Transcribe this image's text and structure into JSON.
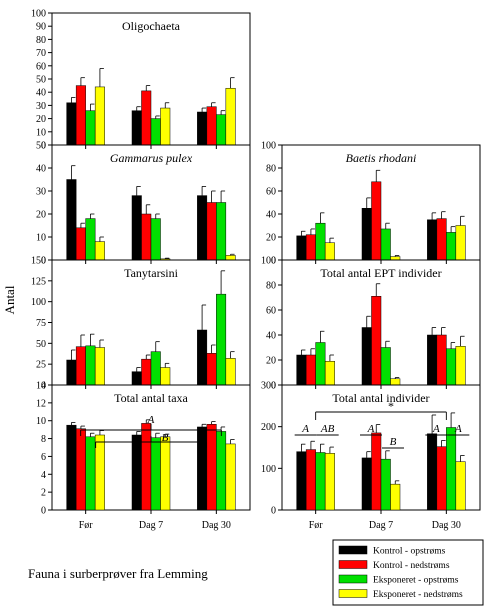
{
  "y_axis_label": "Antal",
  "caption": "Fauna i surberprøver fra Lemming",
  "groups": [
    "Før",
    "Dag 7",
    "Dag 30"
  ],
  "legend": [
    {
      "label": "Kontrol - opstrøms",
      "color": "#000000"
    },
    {
      "label": "Kontrol - nedstrøms",
      "color": "#ff0000"
    },
    {
      "label": "Eksponeret - opstrøms",
      "color": "#00e000"
    },
    {
      "label": "Eksponeret - nedstrøms",
      "color": "#ffff00"
    }
  ],
  "chart_data": [
    {
      "type": "bar",
      "title": "Oligochaeta",
      "title_italic": false,
      "ylim": [
        0,
        100
      ],
      "yticks": [
        0,
        10,
        20,
        30,
        40,
        50,
        60,
        70,
        80,
        90,
        100
      ],
      "categories": [
        "Før",
        "Dag 7",
        "Dag 30"
      ],
      "series": [
        {
          "name": "Kontrol - opstrøms",
          "values": [
            32,
            26,
            25
          ],
          "errors": [
            4,
            3,
            3
          ]
        },
        {
          "name": "Kontrol - nedstrøms",
          "values": [
            45,
            41,
            29
          ],
          "errors": [
            6,
            4,
            3
          ]
        },
        {
          "name": "Eksponeret - opstrøms",
          "values": [
            26,
            20,
            23
          ],
          "errors": [
            5,
            2,
            3
          ]
        },
        {
          "name": "Eksponeret - nedstrøms",
          "values": [
            44,
            28,
            43
          ],
          "errors": [
            14,
            4,
            8
          ]
        }
      ]
    },
    {
      "type": "bar",
      "title": "Gammarus pulex",
      "title_italic": true,
      "ylim": [
        0,
        50
      ],
      "yticks": [
        0,
        10,
        20,
        30,
        40,
        50
      ],
      "categories": [
        "Før",
        "Dag 7",
        "Dag 30"
      ],
      "series": [
        {
          "name": "Kontrol - opstrøms",
          "values": [
            35,
            28,
            28
          ],
          "errors": [
            6,
            4,
            4
          ]
        },
        {
          "name": "Kontrol - nedstrøms",
          "values": [
            14,
            20,
            25
          ],
          "errors": [
            2,
            4,
            5
          ]
        },
        {
          "name": "Eksponeret - opstrøms",
          "values": [
            18,
            18,
            25
          ],
          "errors": [
            2,
            2,
            5
          ]
        },
        {
          "name": "Eksponeret - nedstrøms",
          "values": [
            8,
            0.5,
            2
          ],
          "errors": [
            2,
            0.3,
            0.5
          ]
        }
      ]
    },
    {
      "type": "bar",
      "title": "Tanytarsini",
      "title_italic": false,
      "ylim": [
        0,
        150
      ],
      "yticks": [
        0,
        25,
        50,
        75,
        100,
        125,
        150
      ],
      "categories": [
        "Før",
        "Dag 7",
        "Dag 30"
      ],
      "series": [
        {
          "name": "Kontrol - opstrøms",
          "values": [
            30,
            16,
            66
          ],
          "errors": [
            12,
            5,
            30
          ]
        },
        {
          "name": "Kontrol - nedstrøms",
          "values": [
            46,
            31,
            38
          ],
          "errors": [
            14,
            5,
            10
          ]
        },
        {
          "name": "Eksponeret - opstrøms",
          "values": [
            47,
            40,
            109
          ],
          "errors": [
            14,
            12,
            28
          ]
        },
        {
          "name": "Eksponeret - nedstrøms",
          "values": [
            45,
            21,
            32
          ],
          "errors": [
            9,
            5,
            8
          ]
        }
      ]
    },
    {
      "type": "bar",
      "title": "Total antal taxa",
      "title_italic": false,
      "ylim": [
        0,
        14
      ],
      "yticks": [
        0,
        2,
        4,
        6,
        8,
        10,
        12,
        14
      ],
      "categories": [
        "Før",
        "Dag 7",
        "Dag 30"
      ],
      "series": [
        {
          "name": "Kontrol - opstrøms",
          "values": [
            9.5,
            8.4,
            9.3
          ],
          "errors": [
            0.3,
            0.4,
            0.3
          ]
        },
        {
          "name": "Kontrol - nedstrøms",
          "values": [
            9.1,
            9.7,
            9.6
          ],
          "errors": [
            0.3,
            0.4,
            0.3
          ]
        },
        {
          "name": "Eksponeret - opstrøms",
          "values": [
            8.2,
            8.1,
            8.8
          ],
          "errors": [
            0.4,
            0.5,
            0.5
          ]
        },
        {
          "name": "Eksponeret - nedstrøms",
          "values": [
            8.4,
            8.2,
            7.4
          ],
          "errors": [
            0.5,
            0.3,
            0.5
          ]
        }
      ],
      "annotations": [
        "A",
        "B"
      ]
    },
    {
      "type": "bar",
      "title": "Baetis rhodani",
      "title_italic": true,
      "ylim": [
        0,
        100
      ],
      "yticks": [
        0,
        20,
        40,
        60,
        80,
        100
      ],
      "categories": [
        "Før",
        "Dag 7",
        "Dag 30"
      ],
      "series": [
        {
          "name": "Kontrol - opstrøms",
          "values": [
            21,
            45,
            35
          ],
          "errors": [
            4,
            9,
            6
          ]
        },
        {
          "name": "Kontrol - nedstrøms",
          "values": [
            22,
            68,
            36
          ],
          "errors": [
            5,
            10,
            6
          ]
        },
        {
          "name": "Eksponeret - opstrøms",
          "values": [
            32,
            27,
            24
          ],
          "errors": [
            9,
            5,
            5
          ]
        },
        {
          "name": "Eksponeret - nedstrøms",
          "values": [
            15,
            3,
            30
          ],
          "errors": [
            4,
            1,
            8
          ]
        }
      ]
    },
    {
      "type": "bar",
      "title": "Total antal EPT individer",
      "title_italic": false,
      "ylim": [
        0,
        100
      ],
      "yticks": [
        0,
        20,
        40,
        60,
        80,
        100
      ],
      "categories": [
        "Før",
        "Dag 7",
        "Dag 30"
      ],
      "series": [
        {
          "name": "Kontrol - opstrøms",
          "values": [
            24,
            46,
            40
          ],
          "errors": [
            4,
            9,
            6
          ]
        },
        {
          "name": "Kontrol - nedstrøms",
          "values": [
            24,
            71,
            40
          ],
          "errors": [
            5,
            10,
            6
          ]
        },
        {
          "name": "Eksponeret - opstrøms",
          "values": [
            34,
            30,
            29
          ],
          "errors": [
            9,
            5,
            5
          ]
        },
        {
          "name": "Eksponeret - nedstrøms",
          "values": [
            19,
            5,
            31
          ],
          "errors": [
            5,
            1,
            8
          ]
        }
      ]
    },
    {
      "type": "bar",
      "title": "Total antal individer",
      "title_italic": false,
      "ylim": [
        0,
        300
      ],
      "yticks": [
        0,
        100,
        200,
        300
      ],
      "categories": [
        "Før",
        "Dag 7",
        "Dag 30"
      ],
      "series": [
        {
          "name": "Kontrol - opstrøms",
          "values": [
            140,
            125,
            183
          ],
          "errors": [
            18,
            15,
            45
          ]
        },
        {
          "name": "Kontrol - nedstrøms",
          "values": [
            145,
            185,
            152
          ],
          "errors": [
            20,
            20,
            15
          ]
        },
        {
          "name": "Eksponeret - opstrøms",
          "values": [
            138,
            122,
            198
          ],
          "errors": [
            20,
            20,
            35
          ]
        },
        {
          "name": "Eksponeret - nedstrøms",
          "values": [
            136,
            62,
            116
          ],
          "errors": [
            15,
            8,
            15
          ]
        }
      ],
      "annotations": [
        "A",
        "AB",
        "A",
        "B",
        "A",
        "A",
        "*"
      ]
    }
  ]
}
